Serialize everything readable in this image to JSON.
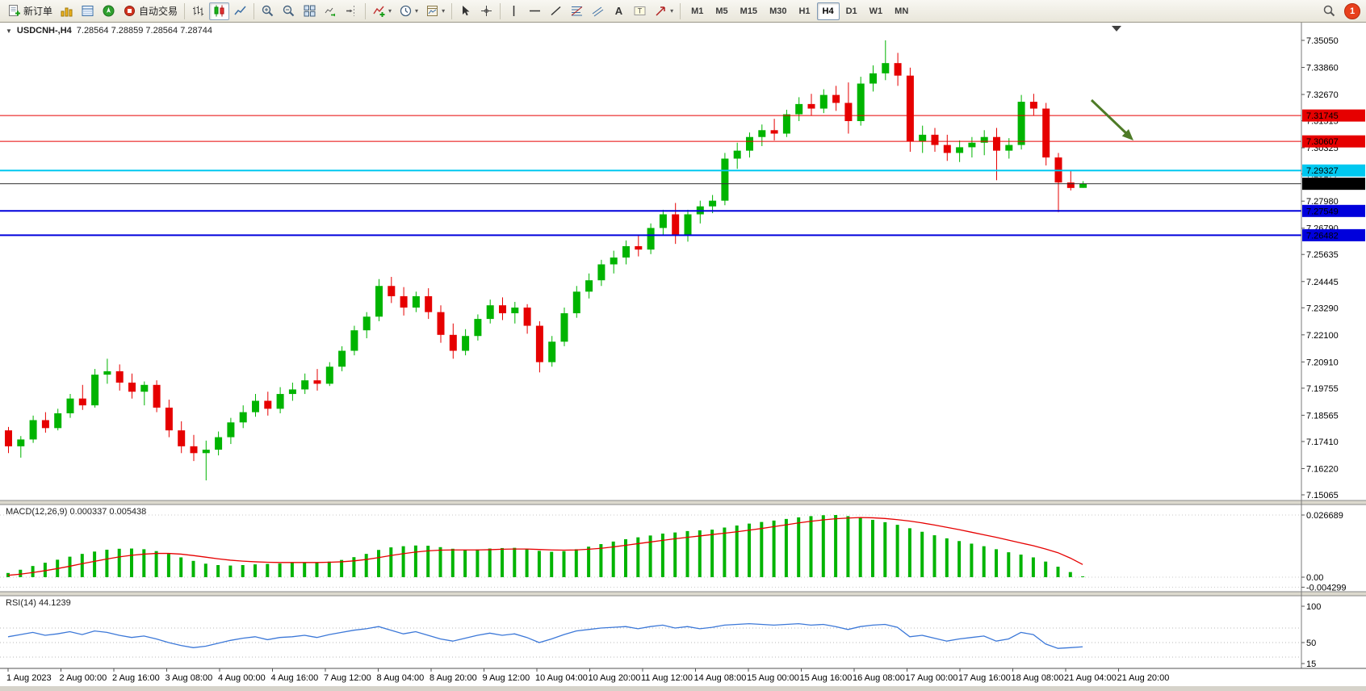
{
  "toolbar": {
    "buttons": {
      "new_order": "新订单",
      "autotrading": "自动交易"
    },
    "timeframes": [
      "M1",
      "M5",
      "M15",
      "M30",
      "H1",
      "H4",
      "D1",
      "W1",
      "MN"
    ],
    "active_timeframe": "H4",
    "notification_badge": "1"
  },
  "chart": {
    "symbol_period": "USDCNH-,H4",
    "ohlc_text": "7.28564 7.28859 7.28564 7.28744"
  },
  "colors": {
    "bull": "#00b400",
    "bear": "#e60000",
    "macd_histogram": "#00b400",
    "macd_signal": "#e60000",
    "rsi_line": "#3c78d8",
    "resistance_line": "#e60000",
    "support_line": "#0000dc",
    "breakout_line": "#00c8f0",
    "bid_line": "#333333",
    "arrow": "#4e7b27"
  },
  "chart_data": [
    {
      "type": "candlestick",
      "symbol": "USDCNH-",
      "timeframe": "H4",
      "last_bar": {
        "open": 7.28564,
        "high": 7.28859,
        "low": 7.28564,
        "close": 7.28744
      },
      "bid": 7.28744,
      "y_ticks": [
        7.3505,
        7.3386,
        7.3267,
        7.31515,
        7.30325,
        7.29177,
        7.2798,
        7.2679,
        7.25635,
        7.24445,
        7.2329,
        7.221,
        7.2091,
        7.19755,
        7.18565,
        7.1741,
        7.1622,
        7.15065
      ],
      "x_labels": [
        "1 Aug 2023",
        "2 Aug 00:00",
        "2 Aug 16:00",
        "3 Aug 08:00",
        "4 Aug 00:00",
        "4 Aug 16:00",
        "7 Aug 12:00",
        "8 Aug 04:00",
        "8 Aug 20:00",
        "9 Aug 12:00",
        "10 Aug 04:00",
        "10 Aug 20:00",
        "11 Aug 12:00",
        "14 Aug 08:00",
        "15 Aug 00:00",
        "15 Aug 16:00",
        "16 Aug 08:00",
        "17 Aug 00:00",
        "17 Aug 16:00",
        "18 Aug 08:00",
        "21 Aug 04:00",
        "21 Aug 20:00"
      ],
      "hlines": [
        {
          "price": 7.31745,
          "label": "7.31745",
          "color": "#e60000",
          "width": 1,
          "text_color": "#ffffff"
        },
        {
          "price": 7.30607,
          "label": "7.30607",
          "color": "#e60000",
          "width": 1,
          "text_color": "#ffffff"
        },
        {
          "price": 7.29327,
          "label": "7.29327",
          "color": "#00c8f0",
          "width": 2,
          "text_color": "#000000"
        },
        {
          "price": 7.27549,
          "label": "7.27549",
          "color": "#0000dc",
          "width": 2,
          "text_color": "#ffffff"
        },
        {
          "price": 7.26482,
          "label": "7.26482",
          "color": "#0000dc",
          "width": 2,
          "text_color": "#ffffff"
        }
      ],
      "annotation": {
        "type": "arrow",
        "direction": "down-right",
        "color": "#4e7b27"
      },
      "ohlc": [
        [
          7.179,
          7.1805,
          7.169,
          7.172
        ],
        [
          7.172,
          7.1765,
          7.167,
          7.175
        ],
        [
          7.175,
          7.1855,
          7.1735,
          7.1835
        ],
        [
          7.1835,
          7.187,
          7.178,
          7.18
        ],
        [
          7.18,
          7.1885,
          7.179,
          7.1865
        ],
        [
          7.1865,
          7.195,
          7.1845,
          7.193
        ],
        [
          7.193,
          7.199,
          7.188,
          7.19
        ],
        [
          7.19,
          7.206,
          7.189,
          7.2035
        ],
        [
          7.2035,
          7.2105,
          7.1995,
          7.205
        ],
        [
          7.205,
          7.208,
          7.1965,
          7.2
        ],
        [
          7.2,
          7.204,
          7.193,
          7.196
        ],
        [
          7.196,
          7.2005,
          7.19,
          7.199
        ],
        [
          7.199,
          7.201,
          7.187,
          7.189
        ],
        [
          7.189,
          7.1925,
          7.176,
          7.179
        ],
        [
          7.179,
          7.183,
          7.169,
          7.172
        ],
        [
          7.172,
          7.177,
          7.1655,
          7.169
        ],
        [
          7.169,
          7.1745,
          7.157,
          7.1705
        ],
        [
          7.1705,
          7.1785,
          7.168,
          7.176
        ],
        [
          7.176,
          7.1845,
          7.173,
          7.1825
        ],
        [
          7.1825,
          7.19,
          7.18,
          7.187
        ],
        [
          7.187,
          7.195,
          7.185,
          7.192
        ],
        [
          7.192,
          7.196,
          7.1855,
          7.1885
        ],
        [
          7.1885,
          7.198,
          7.1865,
          7.195
        ],
        [
          7.195,
          7.2,
          7.192,
          7.197
        ],
        [
          7.197,
          7.204,
          7.195,
          7.201
        ],
        [
          7.201,
          7.206,
          7.1965,
          7.1995
        ],
        [
          7.1995,
          7.209,
          7.1985,
          7.207
        ],
        [
          7.207,
          7.216,
          7.205,
          7.214
        ],
        [
          7.214,
          7.225,
          7.212,
          7.223
        ],
        [
          7.223,
          7.231,
          7.2195,
          7.229
        ],
        [
          7.229,
          7.2455,
          7.227,
          7.2425
        ],
        [
          7.2425,
          7.2465,
          7.235,
          7.238
        ],
        [
          7.238,
          7.242,
          7.2295,
          7.233
        ],
        [
          7.233,
          7.24,
          7.231,
          7.238
        ],
        [
          7.238,
          7.2415,
          7.228,
          7.231
        ],
        [
          7.231,
          7.234,
          7.2175,
          7.221
        ],
        [
          7.221,
          7.226,
          7.2105,
          7.214
        ],
        [
          7.214,
          7.2235,
          7.212,
          7.2205
        ],
        [
          7.2205,
          7.23,
          7.2185,
          7.228
        ],
        [
          7.228,
          7.2365,
          7.226,
          7.234
        ],
        [
          7.234,
          7.2375,
          7.2275,
          7.2305
        ],
        [
          7.2305,
          7.2355,
          7.226,
          7.233
        ],
        [
          7.233,
          7.2345,
          7.2215,
          7.225
        ],
        [
          7.225,
          7.227,
          7.2045,
          7.209
        ],
        [
          7.209,
          7.2205,
          7.207,
          7.218
        ],
        [
          7.218,
          7.233,
          7.216,
          7.2305
        ],
        [
          7.2305,
          7.2425,
          7.2285,
          7.24
        ],
        [
          7.24,
          7.248,
          7.237,
          7.245
        ],
        [
          7.245,
          7.254,
          7.2425,
          7.252
        ],
        [
          7.252,
          7.258,
          7.248,
          7.255
        ],
        [
          7.255,
          7.2625,
          7.252,
          7.26
        ],
        [
          7.26,
          7.265,
          7.2555,
          7.2585
        ],
        [
          7.2585,
          7.27,
          7.2565,
          7.268
        ],
        [
          7.268,
          7.276,
          7.265,
          7.274
        ],
        [
          7.274,
          7.279,
          7.261,
          7.265
        ],
        [
          7.265,
          7.276,
          7.262,
          7.274
        ],
        [
          7.274,
          7.28,
          7.27,
          7.2775
        ],
        [
          7.2775,
          7.2825,
          7.2745,
          7.28
        ],
        [
          7.28,
          7.301,
          7.278,
          7.2985
        ],
        [
          7.2985,
          7.3055,
          7.294,
          7.302
        ],
        [
          7.302,
          7.31,
          7.299,
          7.308
        ],
        [
          7.308,
          7.3135,
          7.304,
          7.311
        ],
        [
          7.311,
          7.316,
          7.3065,
          7.3095
        ],
        [
          7.3095,
          7.32,
          7.308,
          7.318
        ],
        [
          7.318,
          7.3255,
          7.315,
          7.3225
        ],
        [
          7.3225,
          7.327,
          7.3175,
          7.3205
        ],
        [
          7.3205,
          7.329,
          7.3185,
          7.3265
        ],
        [
          7.3265,
          7.3305,
          7.3195,
          7.323
        ],
        [
          7.323,
          7.332,
          7.3095,
          7.315
        ],
        [
          7.315,
          7.3345,
          7.313,
          7.3315
        ],
        [
          7.3315,
          7.3395,
          7.328,
          7.336
        ],
        [
          7.336,
          7.3505,
          7.333,
          7.3405
        ],
        [
          7.3405,
          7.345,
          7.3305,
          7.335
        ],
        [
          7.335,
          7.3385,
          7.3015,
          7.306
        ],
        [
          7.306,
          7.313,
          7.301,
          7.309
        ],
        [
          7.309,
          7.312,
          7.3015,
          7.3045
        ],
        [
          7.3045,
          7.309,
          7.2975,
          7.301
        ],
        [
          7.301,
          7.3065,
          7.297,
          7.3035
        ],
        [
          7.3035,
          7.308,
          7.299,
          7.3055
        ],
        [
          7.3055,
          7.311,
          7.3,
          7.308
        ],
        [
          7.308,
          7.312,
          7.289,
          7.302
        ],
        [
          7.302,
          7.3075,
          7.2985,
          7.3045
        ],
        [
          7.3045,
          7.3265,
          7.3025,
          7.3235
        ],
        [
          7.3235,
          7.327,
          7.3175,
          7.3205
        ],
        [
          7.3205,
          7.323,
          7.2955,
          7.299
        ],
        [
          7.299,
          7.301,
          7.275,
          7.288
        ],
        [
          7.288,
          7.2935,
          7.2845,
          7.2856
        ],
        [
          7.28564,
          7.28859,
          7.28564,
          7.28744
        ]
      ]
    },
    {
      "type": "macd",
      "label": "MACD(12,26,9) 0.000337 0.005438",
      "params": "12,26,9",
      "macd_value": 0.000337,
      "signal_value": 0.005438,
      "y_ticks": [
        "0.026689",
        "0.00",
        "-0.004299"
      ],
      "histogram": [
        0.0018,
        0.0032,
        0.0048,
        0.0062,
        0.0075,
        0.0088,
        0.01,
        0.011,
        0.0118,
        0.0122,
        0.0123,
        0.012,
        0.0112,
        0.01,
        0.0085,
        0.007,
        0.0058,
        0.0052,
        0.005,
        0.0052,
        0.0055,
        0.0057,
        0.0059,
        0.0061,
        0.0063,
        0.0064,
        0.0067,
        0.0074,
        0.0086,
        0.01,
        0.0117,
        0.0128,
        0.0133,
        0.0136,
        0.0135,
        0.0129,
        0.0122,
        0.0118,
        0.0119,
        0.0123,
        0.0125,
        0.0126,
        0.0122,
        0.0113,
        0.0109,
        0.0112,
        0.012,
        0.0131,
        0.0142,
        0.0153,
        0.0163,
        0.0171,
        0.0179,
        0.0187,
        0.0192,
        0.0198,
        0.0201,
        0.0204,
        0.0213,
        0.0222,
        0.023,
        0.0237,
        0.0243,
        0.025,
        0.0257,
        0.0262,
        0.0266,
        0.0267,
        0.0262,
        0.0255,
        0.0246,
        0.0236,
        0.0225,
        0.021,
        0.0195,
        0.018,
        0.0167,
        0.0155,
        0.0144,
        0.0133,
        0.012,
        0.0107,
        0.0097,
        0.0085,
        0.0067,
        0.0045,
        0.0022,
        0.000337
      ],
      "signal": [
        0.0008,
        0.0013,
        0.002,
        0.0028,
        0.0037,
        0.0047,
        0.0058,
        0.0068,
        0.0078,
        0.0087,
        0.0094,
        0.0099,
        0.0102,
        0.0102,
        0.0099,
        0.0093,
        0.0086,
        0.0079,
        0.0073,
        0.0069,
        0.0066,
        0.0064,
        0.0063,
        0.0063,
        0.0063,
        0.0063,
        0.0064,
        0.0066,
        0.007,
        0.0076,
        0.0084,
        0.0093,
        0.0101,
        0.0108,
        0.0113,
        0.0116,
        0.0117,
        0.0117,
        0.0117,
        0.0118,
        0.012,
        0.0121,
        0.0121,
        0.0119,
        0.0117,
        0.0116,
        0.0117,
        0.012,
        0.0124,
        0.013,
        0.0137,
        0.0144,
        0.0151,
        0.0158,
        0.0165,
        0.0171,
        0.0177,
        0.0183,
        0.0189,
        0.0195,
        0.0202,
        0.0209,
        0.0217,
        0.0225,
        0.0233,
        0.024,
        0.0246,
        0.0251,
        0.0254,
        0.0256,
        0.0255,
        0.0252,
        0.0247,
        0.0241,
        0.0233,
        0.0224,
        0.0214,
        0.0204,
        0.0193,
        0.0182,
        0.0171,
        0.0159,
        0.0147,
        0.0135,
        0.0121,
        0.0105,
        0.0082,
        0.005438
      ]
    },
    {
      "type": "rsi",
      "label": "RSI(14) 44.1239",
      "period": 14,
      "value": 44.1239,
      "levels": [
        70,
        50,
        30
      ],
      "y_ticks": [
        "100",
        "50",
        "15"
      ],
      "values": [
        58,
        61,
        64,
        60,
        62,
        65,
        61,
        66,
        64,
        60,
        57,
        59,
        55,
        50,
        46,
        43,
        45,
        49,
        53,
        56,
        58,
        54,
        57,
        58,
        60,
        57,
        61,
        64,
        67,
        69,
        72,
        67,
        62,
        65,
        60,
        55,
        52,
        56,
        60,
        63,
        60,
        62,
        57,
        50,
        55,
        61,
        66,
        68,
        70,
        71,
        72,
        69,
        72,
        74,
        70,
        72,
        69,
        71,
        74,
        75,
        76,
        75,
        74,
        75,
        76,
        74,
        75,
        72,
        68,
        72,
        74,
        75,
        71,
        58,
        60,
        56,
        52,
        55,
        57,
        59,
        52,
        55,
        64,
        61,
        48,
        42,
        43,
        44.1239
      ]
    }
  ]
}
